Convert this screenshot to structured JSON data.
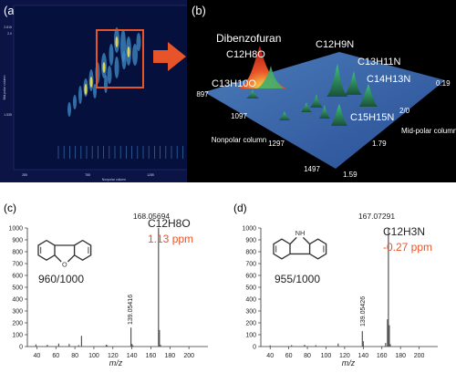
{
  "panel_a": {
    "label": "(a)",
    "xlabel": "Nonpolar column",
    "ylabel": "Mid-polar column",
    "xticks": [
      "285",
      "785",
      "1285",
      "1785"
    ],
    "yticks": [
      "2.815",
      "2.0",
      "1.535"
    ]
  },
  "panel_b": {
    "label": "(b)",
    "compound_name": "Dibenzofuran",
    "formulas": [
      "C12H8O",
      "C12H9N",
      "C13H11N",
      "C14H13N",
      "C13H10O",
      "C15H15N"
    ],
    "xlabel": "Nonpolar column",
    "ylabel": "Mid-polar column",
    "xticks": [
      "897",
      "1097",
      "1297",
      "1497"
    ],
    "yticks": [
      "0.19",
      "2/0",
      "1.79",
      "1.59"
    ]
  },
  "panel_c": {
    "label": "(c)",
    "formula": "C12H8O",
    "ppm": "1.13 ppm",
    "match": "960/1000",
    "peak_main_label": "168.05694",
    "peak_minor_label": "139.05416",
    "xlabel": "m/z"
  },
  "panel_d": {
    "label": "(d)",
    "formula": "C12H3N",
    "ppm": "-0.27 ppm",
    "match": "955/1000",
    "peak_main_label": "167.07291",
    "peak_minor_label": "139.05426",
    "nh_label": "NH",
    "xlabel": "m/z"
  },
  "colors": {
    "accent": "#e8542a",
    "text": "#222222",
    "stick": "#555555"
  },
  "chart_data": [
    {
      "type": "heatmap",
      "title": "",
      "xlabel": "Nonpolar column",
      "ylabel": "Mid-polar column",
      "xlim": [
        285,
        1785
      ],
      "x_ticks": [
        "285",
        "785",
        "1285",
        "1785"
      ],
      "y_ticks": [
        "2.815",
        "2.0",
        "1.535"
      ]
    },
    {
      "type": "area",
      "title": "",
      "xlabel": "Nonpolar column",
      "ylabel": "Mid-polar column",
      "x_ticks": [
        "897",
        "1097",
        "1297",
        "1497"
      ],
      "y_ticks": [
        "0.19",
        "2/0",
        "1.79",
        "1.59"
      ],
      "annotations": [
        "Dibenzofuran",
        "C12H8O",
        "C12H9N",
        "C13H11N",
        "C14H13N",
        "C13H10O",
        "C15H15N"
      ]
    },
    {
      "type": "bar",
      "title": "",
      "xlabel": "m/z",
      "ylabel": "",
      "xlim": [
        30,
        220
      ],
      "ylim": [
        0,
        1000
      ],
      "x_ticks": [
        40,
        60,
        80,
        100,
        120,
        140,
        160,
        180,
        200
      ],
      "y_ticks": [
        0,
        100,
        200,
        300,
        400,
        500,
        600,
        700,
        800,
        900,
        1000
      ],
      "x": [
        39,
        51,
        63,
        74,
        84,
        87,
        113,
        114,
        139,
        140,
        141,
        168,
        169,
        170
      ],
      "values": [
        18,
        15,
        25,
        22,
        12,
        90,
        15,
        10,
        160,
        22,
        10,
        1000,
        140,
        15
      ],
      "annotations": [
        "168.05694",
        "139.05416",
        "C12H8O",
        "1.13 ppm",
        "960/1000"
      ]
    },
    {
      "type": "bar",
      "title": "",
      "xlabel": "m/z",
      "ylabel": "",
      "xlim": [
        30,
        220
      ],
      "ylim": [
        0,
        1000
      ],
      "x_ticks": [
        40,
        60,
        80,
        100,
        120,
        140,
        160,
        180,
        200
      ],
      "y_ticks": [
        0,
        100,
        200,
        300,
        400,
        500,
        600,
        700,
        800,
        900,
        1000
      ],
      "x": [
        40,
        63,
        77,
        89,
        113,
        139,
        140,
        164,
        166,
        167,
        168,
        169
      ],
      "values": [
        10,
        12,
        15,
        12,
        25,
        130,
        45,
        30,
        230,
        1000,
        180,
        20
      ],
      "annotations": [
        "167.07291",
        "139.05426",
        "C12H3N",
        "-0.27 ppm",
        "955/1000"
      ]
    }
  ]
}
